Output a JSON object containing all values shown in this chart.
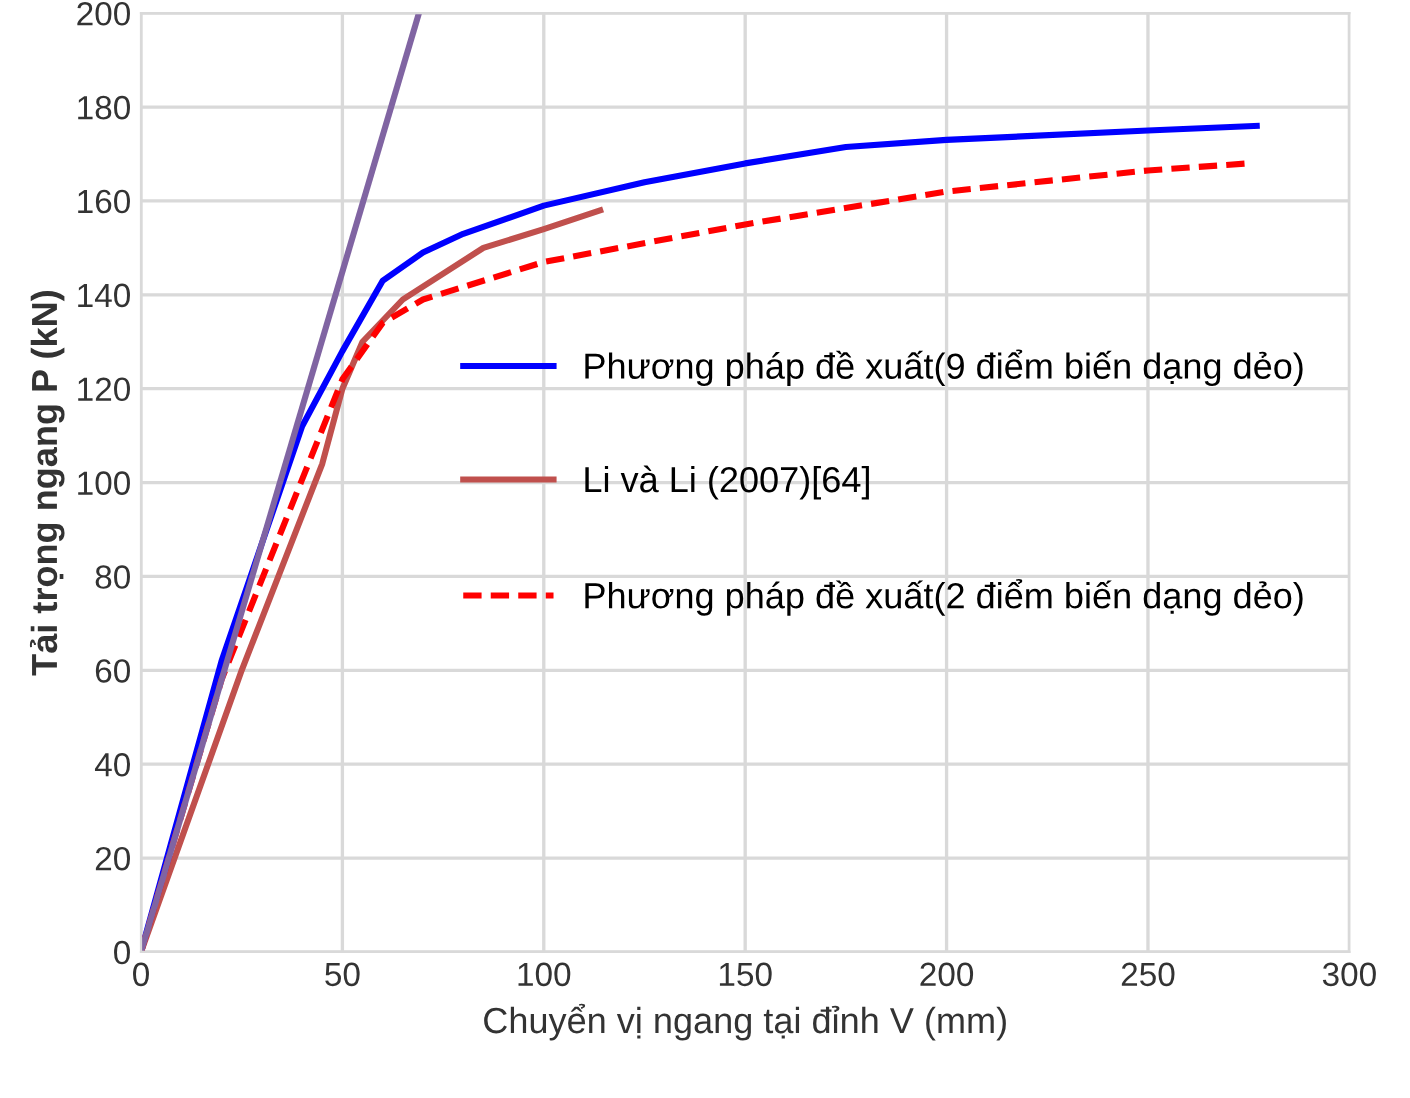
{
  "chart_data": {
    "type": "line",
    "xlabel": "Chuyển vị ngang tại đỉnh V (mm)",
    "ylabel": "Tải trọng ngang P (kN)",
    "xlim": [
      0,
      300
    ],
    "xticks": [
      0,
      50,
      100,
      150,
      200,
      250,
      300
    ],
    "ylim": [
      0,
      200
    ],
    "yticks": [
      0,
      20,
      40,
      60,
      80,
      100,
      120,
      140,
      160,
      180,
      200
    ],
    "grid": true,
    "legend": "center right",
    "marker": "none",
    "series": [
      {
        "name": "Phương pháp đề xuất(9 điểm biến dạng dẻo)",
        "color": "#0000ff",
        "line_style": "solid",
        "x": [
          0,
          20,
          40,
          50,
          60,
          70,
          80,
          100,
          125,
          150,
          175,
          200,
          250,
          277
        ],
        "values": [
          0,
          62,
          112,
          128,
          143,
          149,
          153,
          159,
          164,
          168,
          171.5,
          173,
          175,
          176
        ]
      },
      {
        "name": "Li và Li (2007)[64]",
        "color": "#c0504d",
        "line_style": "solid",
        "x": [
          0,
          25,
          35,
          45,
          50,
          55,
          65,
          85,
          100,
          114
        ],
        "values": [
          0,
          60,
          82,
          104,
          120,
          130,
          139,
          150,
          154,
          158
        ]
      },
      {
        "name": "Phương pháp đề xuất(2 điểm biến dạng dẻo)",
        "color": "#ff0000",
        "line_style": "dashed",
        "x": [
          0,
          20,
          35,
          50,
          60,
          70,
          100,
          150,
          200,
          250,
          275
        ],
        "values": [
          0,
          58,
          90,
          122,
          134,
          139,
          147,
          155,
          162,
          166.5,
          168
        ]
      },
      {
        "color": "#8064a2",
        "line_style": "solid",
        "x": [
          0,
          69
        ],
        "values": [
          0,
          200
        ]
      }
    ]
  }
}
